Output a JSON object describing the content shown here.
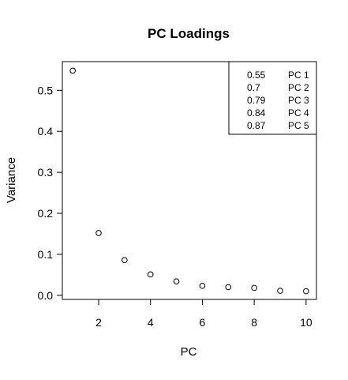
{
  "chart_data": {
    "type": "scatter",
    "title": "PC Loadings",
    "xlabel": "PC",
    "ylabel": "Variance",
    "x": [
      1,
      2,
      3,
      4,
      5,
      6,
      7,
      8,
      9,
      10
    ],
    "y": [
      0.548,
      0.152,
      0.086,
      0.051,
      0.034,
      0.023,
      0.02,
      0.018,
      0.011,
      0.01
    ],
    "xlim": [
      0.6,
      10.4
    ],
    "ylim": [
      -0.01,
      0.57
    ],
    "xticks": [
      2,
      4,
      6,
      8,
      10
    ],
    "yticks": [
      0.0,
      0.1,
      0.2,
      0.3,
      0.4,
      0.5
    ],
    "xtick_labels": [
      "2",
      "4",
      "6",
      "8",
      "10"
    ],
    "ytick_labels": [
      "0.0",
      "0.1",
      "0.2",
      "0.3",
      "0.4",
      "0.5"
    ],
    "grid": false,
    "legend": {
      "position": "top-right",
      "rows": [
        {
          "value": "0.55",
          "label": "PC 1"
        },
        {
          "value": "0.7",
          "label": "PC 2"
        },
        {
          "value": "0.79",
          "label": "PC 3"
        },
        {
          "value": "0.84",
          "label": "PC 4"
        },
        {
          "value": "0.87",
          "label": "PC 5"
        }
      ]
    },
    "marker": "open-circle",
    "colors": {
      "foreground": "#000000",
      "background": "#ffffff"
    }
  }
}
